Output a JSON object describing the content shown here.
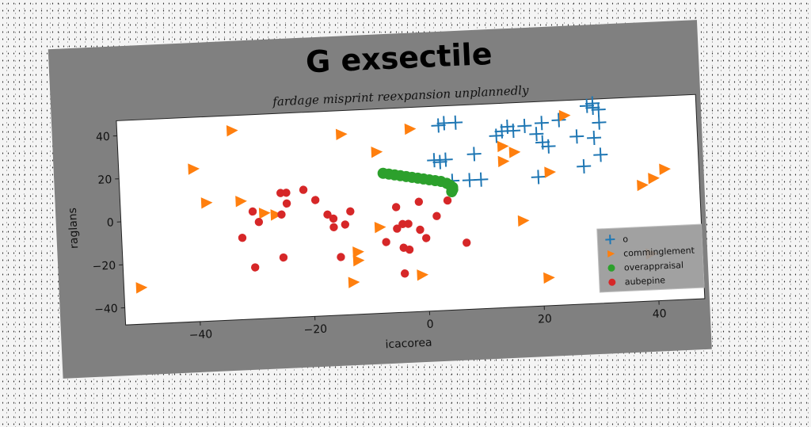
{
  "chart_data": {
    "type": "scatter",
    "title": "G exsectile",
    "subtitle": "fardage misprint reexpansion unplannedly",
    "xlabel": "icacorea",
    "ylabel": "raglans",
    "xlim": [
      -53,
      48
    ],
    "ylim": [
      -48,
      47
    ],
    "xticks": [
      -40,
      -20,
      0,
      20,
      40
    ],
    "yticks": [
      -40,
      -20,
      0,
      20,
      40
    ],
    "grid": false,
    "legend_position": "lower-right",
    "series": [
      {
        "name": "o",
        "marker": "plus",
        "color": "#1f77b4",
        "points": [
          [
            4,
            39
          ],
          [
            6,
            39
          ],
          [
            3,
            38
          ],
          [
            15,
            36
          ],
          [
            18,
            36
          ],
          [
            21,
            37
          ],
          [
            24,
            38
          ],
          [
            29,
            44
          ],
          [
            30,
            45
          ],
          [
            30,
            43
          ],
          [
            31,
            42
          ],
          [
            31,
            36
          ],
          [
            13,
            32
          ],
          [
            14,
            34
          ],
          [
            16,
            34
          ],
          [
            20,
            32
          ],
          [
            21,
            28
          ],
          [
            22,
            26
          ],
          [
            27,
            30
          ],
          [
            30,
            29
          ],
          [
            2,
            22
          ],
          [
            3,
            21
          ],
          [
            4,
            22
          ],
          [
            9,
            24
          ],
          [
            31,
            21
          ],
          [
            28,
            16
          ],
          [
            5,
            12
          ],
          [
            8,
            12
          ],
          [
            10,
            12
          ],
          [
            20,
            12
          ]
        ]
      },
      {
        "name": "comminglement",
        "marker": "triangle-right",
        "color": "#ff7f0e",
        "points": [
          [
            -33,
            40
          ],
          [
            -14,
            36
          ],
          [
            -2,
            37
          ],
          [
            25,
            40
          ],
          [
            -40,
            23
          ],
          [
            -8,
            27
          ],
          [
            14,
            27
          ],
          [
            16,
            24
          ],
          [
            14,
            20
          ],
          [
            22,
            14
          ],
          [
            -38,
            7
          ],
          [
            -32,
            7
          ],
          [
            -28,
            1
          ],
          [
            -26,
            0
          ],
          [
            -8,
            -8
          ],
          [
            17,
            -8
          ],
          [
            -12,
            -19
          ],
          [
            -12,
            -23
          ],
          [
            -50,
            -31
          ],
          [
            -1,
            -31
          ],
          [
            -13,
            -33
          ],
          [
            21,
            -35
          ],
          [
            42,
            13
          ],
          [
            40,
            9
          ],
          [
            38,
            6
          ],
          [
            39,
            -26
          ]
        ]
      },
      {
        "name": "overappraisal",
        "marker": "circle",
        "color": "#2ca02c",
        "points": [
          [
            -7,
            17
          ],
          [
            -6,
            16.5
          ],
          [
            -5,
            16
          ],
          [
            -4,
            15.5
          ],
          [
            -3,
            15
          ],
          [
            -2,
            14.5
          ],
          [
            -1,
            14
          ],
          [
            0,
            13.5
          ],
          [
            1,
            13
          ],
          [
            2,
            12.5
          ],
          [
            3,
            12
          ],
          [
            4,
            11
          ],
          [
            4.6,
            10
          ],
          [
            5,
            9
          ],
          [
            5,
            8
          ],
          [
            4.8,
            7
          ]
        ]
      },
      {
        "name": "aubepine",
        "marker": "circle",
        "color": "#d62728",
        "points": [
          [
            -25,
            10
          ],
          [
            -24,
            10
          ],
          [
            -21,
            11
          ],
          [
            -24,
            5
          ],
          [
            -19,
            6
          ],
          [
            -30,
            2
          ],
          [
            -29,
            -3
          ],
          [
            -25,
            0
          ],
          [
            -17,
            -1
          ],
          [
            -16,
            -3
          ],
          [
            -13,
            0
          ],
          [
            -16,
            -7
          ],
          [
            -14,
            -6
          ],
          [
            -5,
            1
          ],
          [
            -1,
            3
          ],
          [
            4,
            3
          ],
          [
            -32,
            -10
          ],
          [
            -5,
            -9
          ],
          [
            -4,
            -7
          ],
          [
            -3,
            -7
          ],
          [
            -1,
            -10
          ],
          [
            0,
            -14
          ],
          [
            2,
            -4
          ],
          [
            -7,
            -15
          ],
          [
            -4,
            -18
          ],
          [
            -25,
            -20
          ],
          [
            -15,
            -21
          ],
          [
            -30,
            -24
          ],
          [
            -4,
            -30
          ],
          [
            7,
            -17
          ],
          [
            -3,
            -19
          ]
        ]
      }
    ]
  }
}
